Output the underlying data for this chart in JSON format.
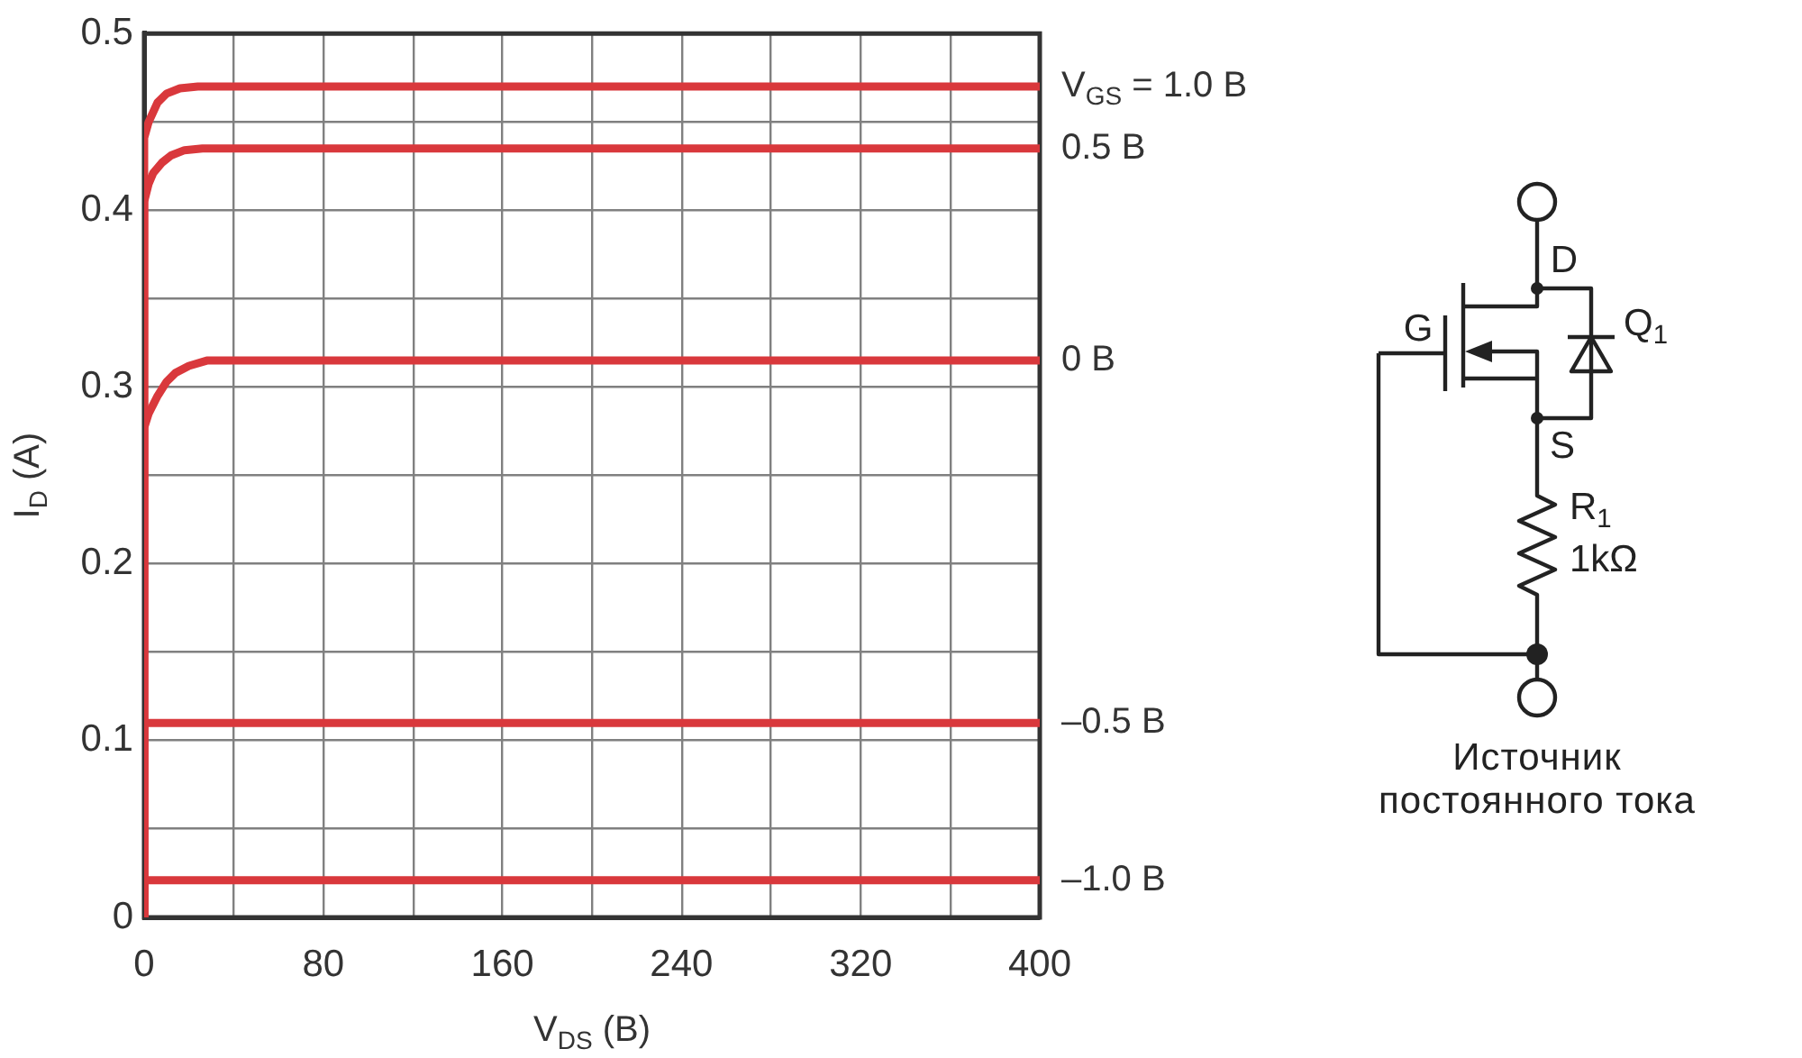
{
  "chart_data": {
    "type": "line",
    "xlabel": "V$_{DS}$ (В)",
    "ylabel": "I$_{D}$ (А)",
    "xlim": [
      0,
      400
    ],
    "xticks": [
      0,
      {
        "value": 40,
        "label": null
      },
      80,
      {
        "value": 120,
        "label": null
      },
      160,
      {
        "value": 200,
        "label": null
      },
      240,
      {
        "value": 280,
        "label": null
      },
      320,
      {
        "value": 360,
        "label": null
      },
      400
    ],
    "ylim": [
      0,
      0.5
    ],
    "yticks": [
      0,
      {
        "value": 0.05,
        "label": null
      },
      0.1,
      {
        "value": 0.15,
        "label": null
      },
      0.2,
      {
        "value": 0.25,
        "label": null
      },
      0.3,
      {
        "value": 0.35,
        "label": null
      },
      0.4,
      {
        "value": 0.45,
        "label": null
      },
      0.5
    ],
    "grid": true,
    "legend": false,
    "marker": "none",
    "series": [
      {
        "name": "V$_{GS}$ = 1.0 В",
        "color": "#d9383c",
        "x": [
          0,
          0,
          2,
          6,
          10,
          16,
          24,
          400
        ],
        "values": [
          0,
          0.441,
          0.45,
          0.461,
          0.466,
          0.469,
          0.47,
          0.47
        ]
      },
      {
        "name": "0.5 В",
        "color": "#d9383c",
        "x": [
          0,
          0,
          2,
          4,
          8,
          12,
          18,
          26,
          400
        ],
        "values": [
          0,
          0.405,
          0.415,
          0.421,
          0.427,
          0.431,
          0.434,
          0.435,
          0.435
        ]
      },
      {
        "name": "0 В",
        "color": "#d9383c",
        "x": [
          0,
          0,
          2,
          6,
          10,
          14,
          20,
          28,
          400
        ],
        "values": [
          0,
          0.277,
          0.285,
          0.295,
          0.303,
          0.308,
          0.312,
          0.315,
          0.315
        ]
      },
      {
        "name": "–0.5 В",
        "color": "#d9383c",
        "x": [
          0,
          0,
          400
        ],
        "values": [
          0,
          0.11,
          0.11
        ]
      },
      {
        "name": "–1.0 В",
        "color": "#d9383c",
        "x": [
          0,
          0,
          400
        ],
        "values": [
          0,
          0.021,
          0.021
        ]
      }
    ],
    "annotations": [
      "G",
      "D",
      "S",
      "Q$_{1}$",
      "R$_{1}$",
      "1kΩ",
      "Источник постоянного тока"
    ]
  }
}
